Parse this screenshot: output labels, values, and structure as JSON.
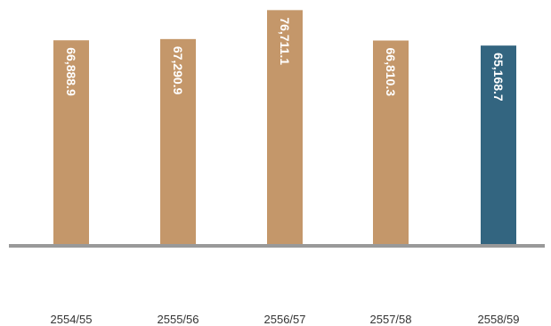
{
  "chart_data": {
    "type": "bar",
    "categories": [
      "2554/55",
      "2555/56",
      "2556/57",
      "2557/58",
      "2558/59"
    ],
    "values": [
      66888.9,
      67290.9,
      76711.1,
      66810.3,
      65168.7
    ],
    "data_labels": [
      "66,888.9",
      "67,290.9",
      "76,711.1",
      "66,810.3",
      "65,168.7"
    ],
    "ylim": [
      0,
      80000
    ],
    "grid": false,
    "legend": "none",
    "colors": {
      "default_bar": "#c4976a",
      "highlight_bar": "#336580",
      "baseline": "#999999",
      "category_text": "#333333",
      "data_label_text": "#ffffff"
    },
    "highlight_index": 4
  }
}
